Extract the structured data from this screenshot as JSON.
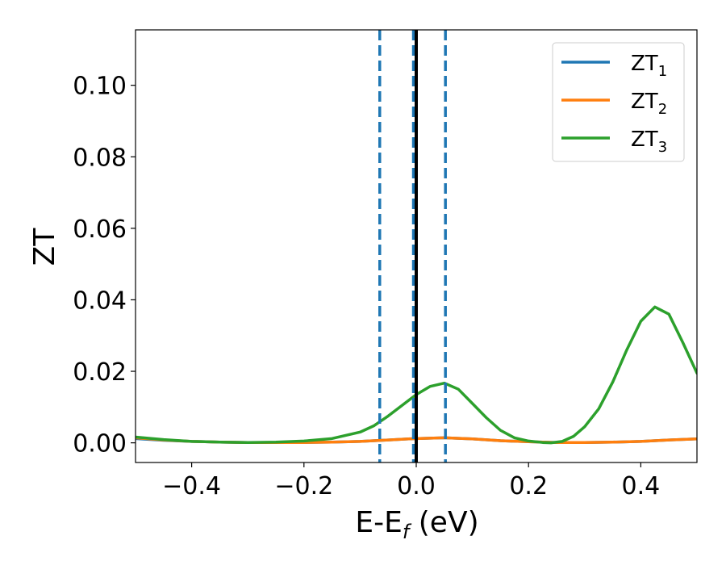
{
  "chart_data": {
    "type": "line",
    "xlabel_main": "E-E",
    "xlabel_sub": "f",
    "xlabel_unit": " (eV)",
    "ylabel": "ZT",
    "xlim": [
      -0.5,
      0.5
    ],
    "ylim": [
      -0.0055,
      0.1155
    ],
    "x_ticks": [
      -0.4,
      -0.2,
      0.0,
      0.2,
      0.4
    ],
    "x_tick_labels": [
      "−0.4",
      "−0.2",
      "0.0",
      "0.2",
      "0.4"
    ],
    "y_ticks": [
      0.0,
      0.02,
      0.04,
      0.06,
      0.08,
      0.1
    ],
    "y_tick_labels": [
      "0.00",
      "0.02",
      "0.04",
      "0.06",
      "0.08",
      "0.10"
    ],
    "grid": false,
    "legend_position": "top-right",
    "series": [
      {
        "name_main": "ZT",
        "name_sub": "1",
        "color": "#1f77b4",
        "x": [
          -0.5,
          -0.45,
          -0.4,
          -0.35,
          -0.3,
          -0.25,
          -0.2,
          -0.15,
          -0.1,
          -0.05,
          0.0,
          0.05,
          0.1,
          0.15,
          0.2,
          0.25,
          0.3,
          0.35,
          0.4,
          0.45,
          0.5
        ],
        "y": [
          0.0012,
          0.0007,
          0.0004,
          0.0002,
          0.0001,
          0.0001,
          0.0001,
          0.0002,
          0.0004,
          0.0008,
          0.0012,
          0.0014,
          0.0011,
          0.0006,
          0.0003,
          0.0001,
          0.0001,
          0.0002,
          0.0004,
          0.0008,
          0.0011
        ]
      },
      {
        "name_main": "ZT",
        "name_sub": "2",
        "color": "#ff7f0e",
        "x": [
          -0.5,
          -0.45,
          -0.4,
          -0.35,
          -0.3,
          -0.25,
          -0.2,
          -0.15,
          -0.1,
          -0.05,
          0.0,
          0.05,
          0.1,
          0.15,
          0.2,
          0.25,
          0.3,
          0.35,
          0.4,
          0.45,
          0.5
        ],
        "y": [
          0.0014,
          0.0008,
          0.0004,
          0.0002,
          0.0001,
          0.0001,
          0.0001,
          0.0002,
          0.0004,
          0.0008,
          0.0012,
          0.0014,
          0.0011,
          0.0006,
          0.0003,
          0.0001,
          0.0001,
          0.0002,
          0.0004,
          0.0008,
          0.0011
        ]
      },
      {
        "name_main": "ZT",
        "name_sub": "3",
        "color": "#2ca02c",
        "x": [
          -0.5,
          -0.45,
          -0.4,
          -0.35,
          -0.3,
          -0.25,
          -0.2,
          -0.15,
          -0.1,
          -0.075,
          -0.05,
          -0.025,
          0.0,
          0.025,
          0.05,
          0.075,
          0.1,
          0.125,
          0.15,
          0.175,
          0.2,
          0.225,
          0.24,
          0.26,
          0.28,
          0.3,
          0.325,
          0.35,
          0.375,
          0.4,
          0.425,
          0.45,
          0.475,
          0.5
        ],
        "y": [
          0.0016,
          0.0009,
          0.0004,
          0.0002,
          0.0001,
          0.0002,
          0.0005,
          0.0012,
          0.003,
          0.0048,
          0.0075,
          0.0105,
          0.0135,
          0.0158,
          0.0167,
          0.015,
          0.011,
          0.007,
          0.0035,
          0.0014,
          0.0005,
          0.0001,
          0.0,
          0.0004,
          0.0018,
          0.0045,
          0.0095,
          0.017,
          0.026,
          0.034,
          0.038,
          0.036,
          0.028,
          0.0195
        ]
      }
    ],
    "vlines": [
      {
        "x": -0.065,
        "style": "dashed",
        "color": "#1f77b4"
      },
      {
        "x": -0.005,
        "style": "dashed",
        "color": "#1f77b4"
      },
      {
        "x": 0.052,
        "style": "dashed",
        "color": "#1f77b4"
      },
      {
        "x": 0.0,
        "style": "solid",
        "color": "#000000"
      }
    ]
  }
}
